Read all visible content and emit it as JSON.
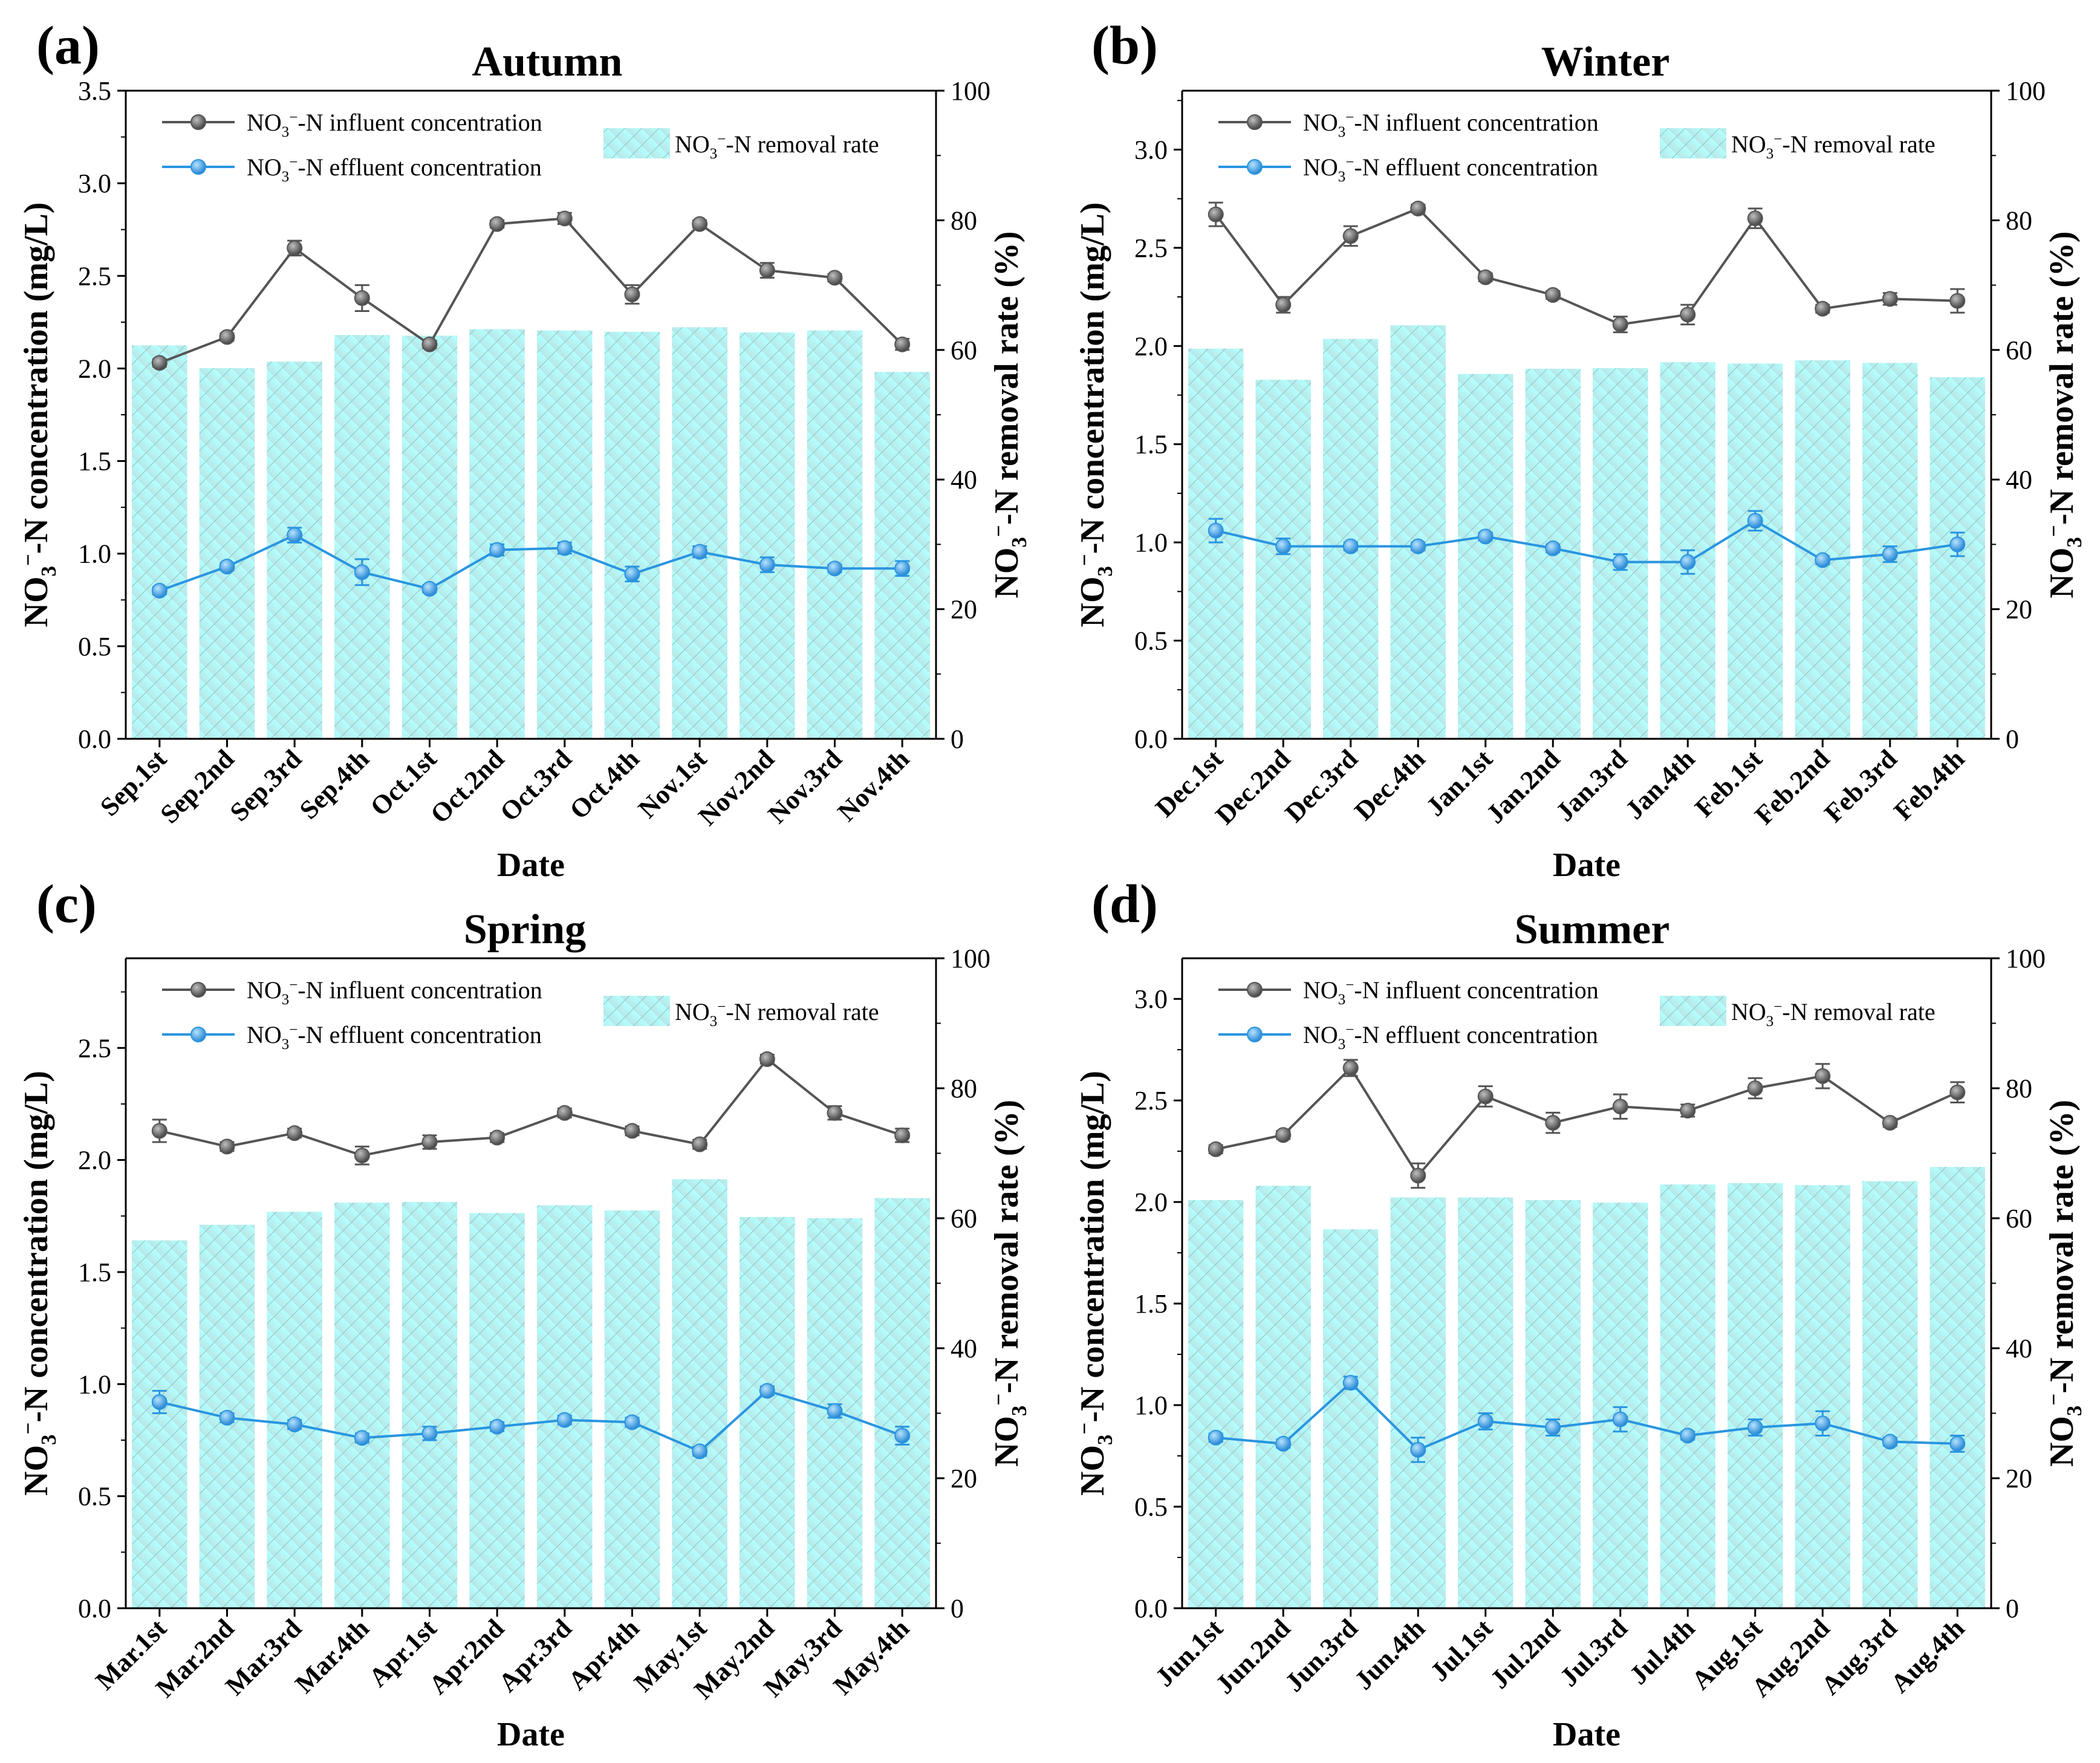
{
  "chart_data": [
    {
      "panel": "(a)",
      "title": "Autumn",
      "type": "bar+line",
      "categories": [
        "Sep.1st",
        "Sep.2nd",
        "Sep.3rd",
        "Sep.4th",
        "Oct.1st",
        "Oct.2nd",
        "Oct.3rd",
        "Oct.4th",
        "Nov.1st",
        "Nov.2nd",
        "Nov.3rd",
        "Nov.4th"
      ],
      "xlabel": "Date",
      "ylabel": "NO3⁻-N concentration (mg/L)",
      "y2label": "NO3⁻-N removal rate (%)",
      "ylim": [
        0,
        3.5
      ],
      "yticks": [
        0.0,
        0.5,
        1.0,
        1.5,
        2.0,
        2.5,
        3.0,
        3.5
      ],
      "y2lim": [
        0,
        100
      ],
      "y2ticks": [
        0,
        20,
        40,
        60,
        80,
        100
      ],
      "series": [
        {
          "name": "NO3⁻-N influent concentration",
          "axis": "left",
          "kind": "line",
          "values": [
            2.03,
            2.17,
            2.65,
            2.38,
            2.13,
            2.78,
            2.81,
            2.4,
            2.78,
            2.53,
            2.49,
            2.13
          ],
          "errors": [
            0.02,
            0.02,
            0.04,
            0.07,
            0.02,
            0.02,
            0.03,
            0.05,
            0.02,
            0.04,
            0.02,
            0.03
          ]
        },
        {
          "name": "NO3⁻-N effluent concentration",
          "axis": "left",
          "kind": "line",
          "values": [
            0.8,
            0.93,
            1.1,
            0.9,
            0.81,
            1.02,
            1.03,
            0.89,
            1.01,
            0.94,
            0.92,
            0.92
          ],
          "errors": [
            0.02,
            0.02,
            0.04,
            0.07,
            0.02,
            0.03,
            0.03,
            0.04,
            0.03,
            0.04,
            0.02,
            0.04
          ]
        },
        {
          "name": "NO3⁻-N removal rate",
          "axis": "right",
          "kind": "bar",
          "values": [
            60.7,
            57.2,
            58.2,
            62.3,
            62.2,
            63.2,
            63.0,
            62.8,
            63.5,
            62.7,
            63.0,
            56.6
          ]
        }
      ]
    },
    {
      "panel": "(b)",
      "title": "Winter",
      "type": "bar+line",
      "categories": [
        "Dec.1st",
        "Dec.2nd",
        "Dec.3rd",
        "Dec.4th",
        "Jan.1st",
        "Jan.2nd",
        "Jan.3rd",
        "Jan.4th",
        "Feb.1st",
        "Feb.2nd",
        "Feb.3rd",
        "Feb.4th"
      ],
      "xlabel": "Date",
      "ylabel": "NO3⁻-N concentration (mg/L)",
      "y2label": "NO3⁻-N removal rate (%)",
      "ylim": [
        0,
        3.3
      ],
      "yticks": [
        0.0,
        0.5,
        1.0,
        1.5,
        2.0,
        2.5,
        3.0
      ],
      "y2lim": [
        0,
        100
      ],
      "y2ticks": [
        0,
        20,
        40,
        60,
        80,
        100
      ],
      "series": [
        {
          "name": "NO3⁻-N influent concentration",
          "axis": "left",
          "kind": "line",
          "values": [
            2.67,
            2.21,
            2.56,
            2.7,
            2.35,
            2.26,
            2.11,
            2.16,
            2.65,
            2.19,
            2.24,
            2.23
          ],
          "errors": [
            0.06,
            0.04,
            0.05,
            0.02,
            0.02,
            0.02,
            0.04,
            0.05,
            0.05,
            0.02,
            0.03,
            0.06
          ]
        },
        {
          "name": "NO3⁻-N effluent concentration",
          "axis": "left",
          "kind": "line",
          "values": [
            1.06,
            0.98,
            0.98,
            0.98,
            1.03,
            0.97,
            0.9,
            0.9,
            1.11,
            0.91,
            0.94,
            0.99
          ],
          "errors": [
            0.06,
            0.04,
            0.02,
            0.02,
            0.02,
            0.02,
            0.04,
            0.06,
            0.05,
            0.02,
            0.04,
            0.06
          ]
        },
        {
          "name": "NO3⁻-N removal rate",
          "axis": "right",
          "kind": "bar",
          "values": [
            60.2,
            55.4,
            61.7,
            63.8,
            56.3,
            57.1,
            57.2,
            58.1,
            57.9,
            58.4,
            58.0,
            55.8
          ]
        }
      ]
    },
    {
      "panel": "(c)",
      "title": "Spring",
      "type": "bar+line",
      "categories": [
        "Mar.1st",
        "Mar.2nd",
        "Mar.3rd",
        "Mar.4th",
        "Apr.1st",
        "Apr.2nd",
        "Apr.3rd",
        "Apr.4th",
        "May.1st",
        "May.2nd",
        "May.3rd",
        "May.4th"
      ],
      "xlabel": "Date",
      "ylabel": "NO3⁻-N concentration (mg/L)",
      "y2label": "NO3⁻-N removal rate (%)",
      "ylim": [
        0,
        2.9
      ],
      "yticks": [
        0.0,
        0.5,
        1.0,
        1.5,
        2.0,
        2.5
      ],
      "y2lim": [
        0,
        100
      ],
      "y2ticks": [
        0,
        20,
        40,
        60,
        80,
        100
      ],
      "series": [
        {
          "name": "NO3⁻-N influent concentration",
          "axis": "left",
          "kind": "line",
          "values": [
            2.13,
            2.06,
            2.12,
            2.02,
            2.08,
            2.1,
            2.21,
            2.13,
            2.07,
            2.45,
            2.21,
            2.11
          ],
          "errors": [
            0.05,
            0.02,
            0.02,
            0.04,
            0.03,
            0.02,
            0.02,
            0.02,
            0.02,
            0.02,
            0.03,
            0.03
          ]
        },
        {
          "name": "NO3⁻-N effluent concentration",
          "axis": "left",
          "kind": "line",
          "values": [
            0.92,
            0.85,
            0.82,
            0.76,
            0.78,
            0.81,
            0.84,
            0.83,
            0.7,
            0.97,
            0.88,
            0.77
          ],
          "errors": [
            0.05,
            0.02,
            0.02,
            0.02,
            0.03,
            0.02,
            0.02,
            0.02,
            0.02,
            0.02,
            0.03,
            0.04
          ]
        },
        {
          "name": "NO3⁻-N removal rate",
          "axis": "right",
          "kind": "bar",
          "values": [
            56.6,
            59.0,
            61.0,
            62.4,
            62.5,
            60.8,
            62.0,
            61.2,
            66.0,
            60.2,
            60.0,
            63.1
          ]
        }
      ]
    },
    {
      "panel": "(d)",
      "title": "Summer",
      "type": "bar+line",
      "categories": [
        "Jun.1st",
        "Jun.2nd",
        "Jun.3rd",
        "Jun.4th",
        "Jul.1st",
        "Jul.2nd",
        "Jul.3rd",
        "Jul.4th",
        "Aug.1st",
        "Aug.2nd",
        "Aug.3rd",
        "Aug.4th"
      ],
      "xlabel": "Date",
      "ylabel": "NO3⁻-N concentration (mg/L)",
      "y2label": "NO3⁻-N removal rate (%)",
      "ylim": [
        0,
        3.2
      ],
      "yticks": [
        0.0,
        0.5,
        1.0,
        1.5,
        2.0,
        2.5,
        3.0
      ],
      "y2lim": [
        0,
        100
      ],
      "y2ticks": [
        0,
        20,
        40,
        60,
        80,
        100
      ],
      "series": [
        {
          "name": "NO3⁻-N influent concentration",
          "axis": "left",
          "kind": "line",
          "values": [
            2.26,
            2.33,
            2.66,
            2.13,
            2.52,
            2.39,
            2.47,
            2.45,
            2.56,
            2.62,
            2.39,
            2.54
          ],
          "errors": [
            0.02,
            0.02,
            0.04,
            0.06,
            0.05,
            0.05,
            0.06,
            0.03,
            0.05,
            0.06,
            0.02,
            0.05
          ]
        },
        {
          "name": "NO3⁻-N effluent concentration",
          "axis": "left",
          "kind": "line",
          "values": [
            0.84,
            0.81,
            1.11,
            0.78,
            0.92,
            0.89,
            0.93,
            0.85,
            0.89,
            0.91,
            0.82,
            0.81
          ],
          "errors": [
            0.02,
            0.02,
            0.03,
            0.06,
            0.04,
            0.04,
            0.06,
            0.02,
            0.04,
            0.06,
            0.02,
            0.04
          ]
        },
        {
          "name": "NO3⁻-N removal rate",
          "axis": "right",
          "kind": "bar",
          "values": [
            62.8,
            65.0,
            58.3,
            63.2,
            63.2,
            62.8,
            62.4,
            65.2,
            65.4,
            65.1,
            65.7,
            67.9
          ]
        }
      ]
    }
  ],
  "colors": {
    "influent": "#555555",
    "effluent": "#2a95e0",
    "bar_top": "#b4ffff",
    "bar_bottom": "#b6e8e8",
    "axis": "#000000"
  }
}
